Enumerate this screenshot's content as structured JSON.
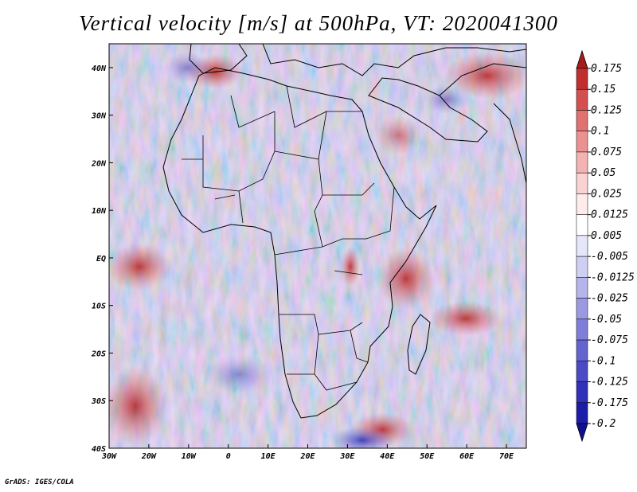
{
  "title": "Vertical velocity [m/s] at 500hPa, VT: 2020041300",
  "credit": "GrADS: IGES/COLA",
  "map": {
    "lon_range": [
      -30,
      75
    ],
    "lat_range": [
      -40,
      45
    ],
    "lon_ticks": [
      "30W",
      "20W",
      "10W",
      "0",
      "10E",
      "20E",
      "30E",
      "40E",
      "50E",
      "60E",
      "70E"
    ],
    "lat_ticks": [
      "40N",
      "30N",
      "20N",
      "10N",
      "EQ",
      "10S",
      "20S",
      "30S",
      "40S"
    ]
  },
  "colorbar": {
    "labels": [
      "0.175",
      "0.15",
      "0.125",
      "0.1",
      "0.075",
      "0.05",
      "0.025",
      "0.0125",
      "0.005",
      "-0.005",
      "-0.0125",
      "-0.025",
      "-0.05",
      "-0.075",
      "-0.1",
      "-0.125",
      "-0.175",
      "-0.2"
    ],
    "colors": [
      "#a51c1c",
      "#c0302f",
      "#d4504f",
      "#e07170",
      "#ea9291",
      "#f3b3b2",
      "#f9d2d1",
      "#fdeceb",
      "#ffffff",
      "#e6e6fa",
      "#cfcff3",
      "#b5b5ec",
      "#9a9ae3",
      "#7f7fda",
      "#6464d0",
      "#4a4ac4",
      "#3030b8",
      "#1c1ca8",
      "#10108f"
    ]
  }
}
